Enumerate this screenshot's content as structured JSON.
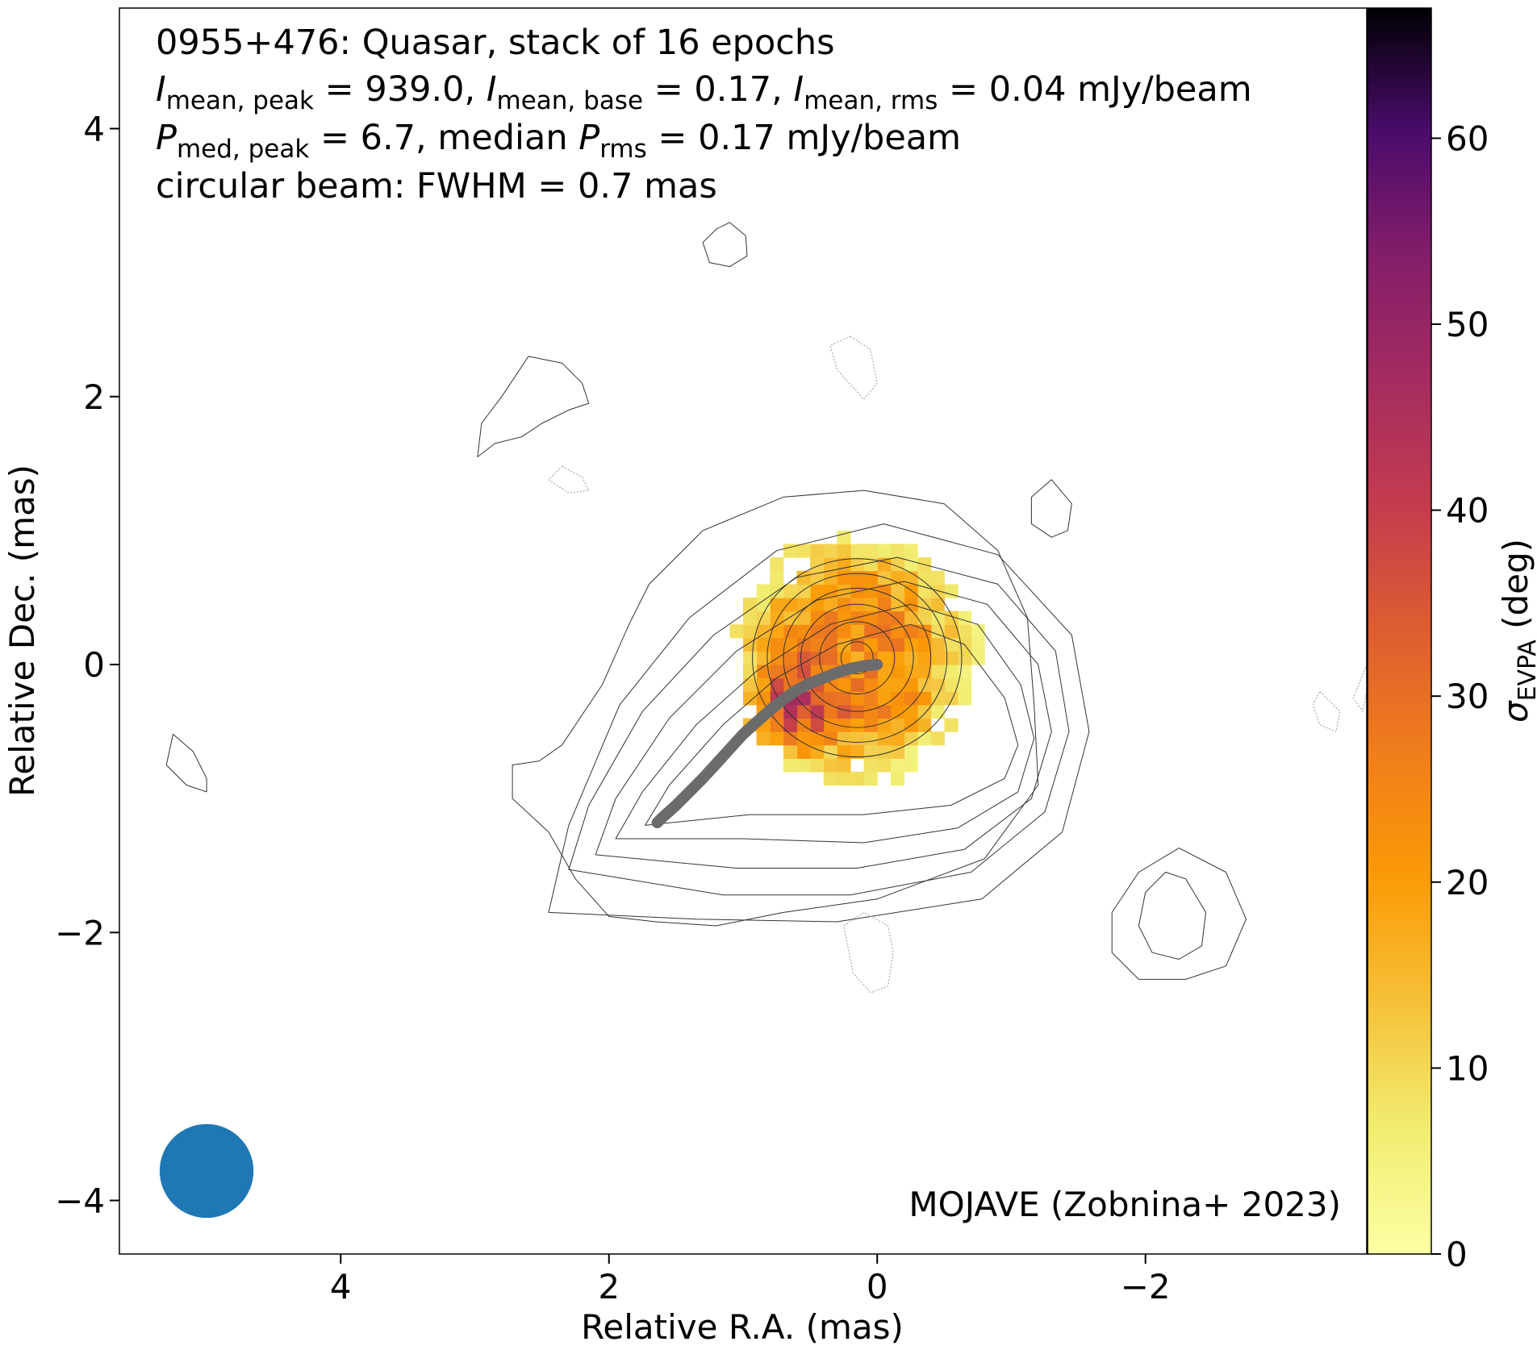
{
  "chart_data": {
    "type": "heatmap",
    "title_lines": {
      "line1": "0955+476: Quasar, stack of 16 epochs",
      "line2": {
        "p1_sym": "I",
        "p1_sub": "mean, peak",
        "p1_val": " = 939.0, ",
        "p2_sym": "I",
        "p2_sub": "mean, base",
        "p2_val": " = 0.17, ",
        "p3_sym": "I",
        "p3_sub": "mean, rms",
        "p3_val": " = 0.04 mJy/beam"
      },
      "line3": {
        "p1_sym": "P",
        "p1_sub": "med, peak",
        "p1_val": " = 6.7, median ",
        "p2_sym": "P",
        "p2_sub": "rms",
        "p2_val": " = 0.17 mJy/beam"
      },
      "line4": "circular beam: FWHM = 0.7 mas"
    },
    "credit": "MOJAVE (Zobnina+ 2023)",
    "xlabel": "Relative R.A. (mas)",
    "ylabel": "Relative Dec. (mas)",
    "xlim": [
      5.65,
      -3.65
    ],
    "ylim": [
      -4.4,
      4.9
    ],
    "x_axis_inverted": true,
    "xticks": [
      4,
      2,
      0,
      -2
    ],
    "yticks": [
      4,
      2,
      0,
      -2,
      -4
    ],
    "xtick_labels": [
      "4",
      "2",
      "0",
      "−2"
    ],
    "ytick_labels": [
      "4",
      "2",
      "0",
      "−2",
      "−4"
    ],
    "colorbar": {
      "label_sym": "σ",
      "label_sub": "EVPA",
      "label_unit": " (deg)",
      "colormap": "inferno_r",
      "range": [
        0,
        67
      ],
      "ticks": [
        0,
        10,
        20,
        30,
        40,
        50,
        60
      ],
      "tick_labels": [
        "0",
        "10",
        "20",
        "30",
        "40",
        "50",
        "60"
      ]
    },
    "intensity_contours": {
      "center": [
        0.15,
        0.05
      ],
      "rings": [
        {
          "rx": 0.12,
          "ry": 0.12
        },
        {
          "rx": 0.28,
          "ry": 0.27
        },
        {
          "rx": 0.42,
          "ry": 0.4
        },
        {
          "rx": 0.55,
          "ry": 0.52
        },
        {
          "rx": 0.67,
          "ry": 0.63
        },
        {
          "rx": 0.78,
          "ry": 0.74
        }
      ],
      "outer_contours": [
        [
          [
            1.73,
            -1.2
          ],
          [
            1.55,
            -0.9
          ],
          [
            1.15,
            -0.45
          ],
          [
            0.75,
            -0.1
          ],
          [
            0.3,
            0.15
          ],
          [
            -0.25,
            0.3
          ],
          [
            -0.65,
            0.15
          ],
          [
            -0.95,
            -0.25
          ],
          [
            -1.05,
            -0.6
          ],
          [
            -0.95,
            -0.85
          ],
          [
            -0.55,
            -1.05
          ],
          [
            0.1,
            -1.12
          ],
          [
            0.95,
            -1.12
          ],
          [
            1.73,
            -1.2
          ]
        ],
        [
          [
            1.95,
            -1.3
          ],
          [
            1.75,
            -0.95
          ],
          [
            1.35,
            -0.45
          ],
          [
            0.9,
            -0.05
          ],
          [
            0.35,
            0.3
          ],
          [
            -0.25,
            0.45
          ],
          [
            -0.75,
            0.3
          ],
          [
            -1.07,
            -0.15
          ],
          [
            -1.17,
            -0.55
          ],
          [
            -1.05,
            -0.95
          ],
          [
            -0.6,
            -1.22
          ],
          [
            0.1,
            -1.33
          ],
          [
            1.0,
            -1.3
          ],
          [
            1.95,
            -1.3
          ]
        ],
        [
          [
            2.1,
            -1.42
          ],
          [
            1.95,
            -1.0
          ],
          [
            1.55,
            -0.4
          ],
          [
            1.05,
            0.1
          ],
          [
            0.45,
            0.48
          ],
          [
            -0.2,
            0.62
          ],
          [
            -0.82,
            0.45
          ],
          [
            -1.2,
            0.0
          ],
          [
            -1.3,
            -0.5
          ],
          [
            -1.15,
            -1.0
          ],
          [
            -0.65,
            -1.38
          ],
          [
            0.15,
            -1.52
          ],
          [
            1.05,
            -1.52
          ],
          [
            2.1,
            -1.42
          ]
        ],
        [
          [
            2.3,
            -1.53
          ],
          [
            2.15,
            -1.05
          ],
          [
            1.75,
            -0.35
          ],
          [
            1.22,
            0.22
          ],
          [
            0.6,
            0.65
          ],
          [
            -0.15,
            0.8
          ],
          [
            -0.9,
            0.6
          ],
          [
            -1.33,
            0.1
          ],
          [
            -1.43,
            -0.5
          ],
          [
            -1.25,
            -1.1
          ],
          [
            -0.7,
            -1.55
          ],
          [
            0.2,
            -1.72
          ],
          [
            1.15,
            -1.72
          ],
          [
            2.3,
            -1.53
          ]
        ],
        [
          [
            2.45,
            -1.85
          ],
          [
            2.3,
            -1.2
          ],
          [
            1.92,
            -0.3
          ],
          [
            1.4,
            0.35
          ],
          [
            0.75,
            0.85
          ],
          [
            -0.05,
            1.05
          ],
          [
            -0.9,
            0.82
          ],
          [
            -1.45,
            0.22
          ],
          [
            -1.58,
            -0.5
          ],
          [
            -1.38,
            -1.25
          ],
          [
            -0.78,
            -1.75
          ],
          [
            0.3,
            -1.92
          ],
          [
            1.35,
            -1.9
          ],
          [
            2.45,
            -1.85
          ]
        ],
        [
          [
            2.72,
            -1.0
          ],
          [
            2.45,
            -1.25
          ],
          [
            2.25,
            -1.6
          ],
          [
            2.0,
            -1.88
          ],
          [
            1.65,
            -1.92
          ],
          [
            1.2,
            -1.95
          ],
          [
            0.7,
            -1.85
          ],
          [
            0.0,
            -1.75
          ],
          [
            -0.8,
            -1.45
          ],
          [
            -1.2,
            -0.9
          ],
          [
            -1.17,
            -0.3
          ],
          [
            -1.12,
            0.35
          ],
          [
            -0.9,
            0.85
          ],
          [
            -0.5,
            1.2
          ],
          [
            0.1,
            1.3
          ],
          [
            0.7,
            1.25
          ],
          [
            1.3,
            1.0
          ],
          [
            1.7,
            0.6
          ],
          [
            1.85,
            0.3
          ],
          [
            2.05,
            -0.15
          ],
          [
            2.35,
            -0.6
          ],
          [
            2.52,
            -0.72
          ],
          [
            2.72,
            -0.75
          ],
          [
            2.72,
            -1.0
          ]
        ]
      ],
      "islands": [
        {
          "pts": [
            [
              1.2,
              3.25
            ],
            [
              1.1,
              3.3
            ],
            [
              0.98,
              3.2
            ],
            [
              0.97,
              3.05
            ],
            [
              1.1,
              2.97
            ],
            [
              1.25,
              3.0
            ],
            [
              1.3,
              3.15
            ],
            [
              1.2,
              3.25
            ]
          ],
          "dashed": false
        },
        {
          "pts": [
            [
              2.6,
              2.3
            ],
            [
              2.35,
              2.25
            ],
            [
              2.2,
              2.1
            ],
            [
              2.15,
              1.95
            ],
            [
              2.3,
              1.9
            ],
            [
              2.5,
              1.8
            ],
            [
              2.65,
              1.7
            ],
            [
              2.85,
              1.65
            ],
            [
              2.98,
              1.55
            ],
            [
              2.95,
              1.8
            ],
            [
              2.8,
              2.0
            ],
            [
              2.6,
              2.3
            ]
          ],
          "dashed": false
        },
        {
          "pts": [
            [
              0.2,
              2.45
            ],
            [
              0.05,
              2.35
            ],
            [
              0.0,
              2.1
            ],
            [
              0.1,
              1.98
            ],
            [
              0.3,
              2.2
            ],
            [
              0.35,
              2.38
            ],
            [
              0.2,
              2.45
            ]
          ],
          "dashed": true
        },
        {
          "pts": [
            [
              2.35,
              1.48
            ],
            [
              2.2,
              1.4
            ],
            [
              2.15,
              1.3
            ],
            [
              2.3,
              1.28
            ],
            [
              2.45,
              1.38
            ],
            [
              2.35,
              1.48
            ]
          ],
          "dashed": true
        },
        {
          "pts": [
            [
              -1.3,
              1.38
            ],
            [
              -1.45,
              1.2
            ],
            [
              -1.42,
              1.0
            ],
            [
              -1.3,
              0.95
            ],
            [
              -1.15,
              1.05
            ],
            [
              -1.15,
              1.25
            ],
            [
              -1.3,
              1.38
            ]
          ],
          "dashed": false
        },
        {
          "pts": [
            [
              5.25,
              -0.52
            ],
            [
              5.1,
              -0.65
            ],
            [
              5.0,
              -0.85
            ],
            [
              5.0,
              -0.95
            ],
            [
              5.15,
              -0.9
            ],
            [
              5.3,
              -0.75
            ],
            [
              5.25,
              -0.52
            ]
          ],
          "dashed": false
        },
        {
          "pts": [
            [
              -3.3,
              -0.2
            ],
            [
              -3.45,
              -0.35
            ],
            [
              -3.42,
              -0.5
            ],
            [
              -3.3,
              -0.45
            ],
            [
              -3.25,
              -0.3
            ],
            [
              -3.3,
              -0.2
            ]
          ],
          "dashed": true
        },
        {
          "pts": [
            [
              -3.65,
              0.0
            ],
            [
              -3.55,
              -0.25
            ],
            [
              -3.62,
              -0.35
            ],
            [
              -3.65,
              -0.2
            ]
          ],
          "dashed": true
        },
        {
          "pts": [
            [
              0.1,
              -1.85
            ],
            [
              0.25,
              -1.95
            ],
            [
              0.18,
              -2.3
            ],
            [
              0.05,
              -2.45
            ],
            [
              -0.08,
              -2.4
            ],
            [
              -0.12,
              -2.15
            ],
            [
              -0.08,
              -1.95
            ],
            [
              0.1,
              -1.85
            ]
          ],
          "dashed": true
        }
      ],
      "rings_southwest": [
        {
          "pts": [
            [
              -2.15,
              -1.55
            ],
            [
              -2.3,
              -1.6
            ],
            [
              -2.45,
              -1.85
            ],
            [
              -2.42,
              -2.1
            ],
            [
              -2.25,
              -2.2
            ],
            [
              -2.05,
              -2.15
            ],
            [
              -1.95,
              -1.95
            ],
            [
              -2.0,
              -1.7
            ],
            [
              -2.15,
              -1.55
            ]
          ]
        },
        {
          "pts": [
            [
              -2.25,
              -1.37
            ],
            [
              -2.6,
              -1.55
            ],
            [
              -2.75,
              -1.9
            ],
            [
              -2.6,
              -2.25
            ],
            [
              -2.3,
              -2.35
            ],
            [
              -1.95,
              -2.35
            ],
            [
              -1.75,
              -2.15
            ],
            [
              -1.75,
              -1.85
            ],
            [
              -1.95,
              -1.55
            ],
            [
              -2.25,
              -1.37
            ]
          ]
        }
      ]
    },
    "evpa_sigma_pixels": {
      "center": [
        0.15,
        0.05
      ],
      "radius": 0.92,
      "pixel_size": 0.1,
      "base_sigma": 24,
      "edge_sigma": 7,
      "high_sigma_region": {
        "center": [
          0.6,
          -0.3
        ],
        "radius": 0.45,
        "sigma": 48
      }
    },
    "ridge_line": {
      "x": [
        0.0,
        0.1,
        0.2,
        0.3,
        0.4,
        0.5,
        0.6,
        0.7,
        0.8,
        0.9,
        1.0,
        1.1,
        1.2,
        1.3,
        1.4,
        1.5,
        1.6,
        1.64
      ],
      "y": [
        0.0,
        -0.01,
        -0.03,
        -0.06,
        -0.1,
        -0.14,
        -0.19,
        -0.26,
        -0.34,
        -0.43,
        -0.52,
        -0.63,
        -0.74,
        -0.85,
        -0.95,
        -1.05,
        -1.14,
        -1.18
      ],
      "color": "#6b6b6b"
    },
    "beam": {
      "fwhm_mas": 0.7,
      "center": [
        5.0,
        -3.78
      ],
      "color": "#1f77b4"
    }
  }
}
